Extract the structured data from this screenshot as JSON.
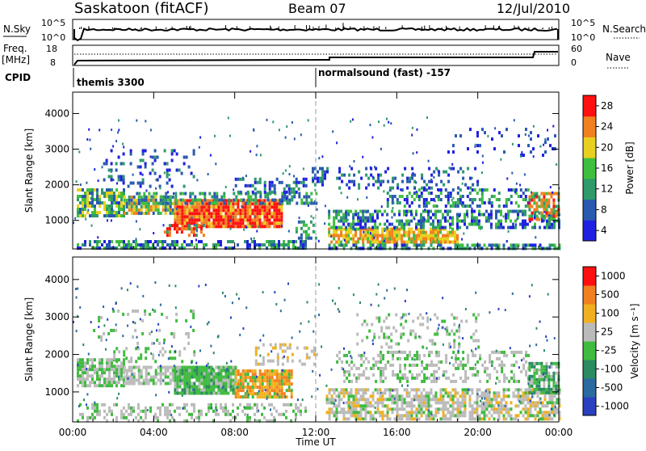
{
  "header": {
    "station": "Saskatoon (fitACF)",
    "beam": "Beam 07",
    "date": "12/Jul/2010"
  },
  "params": {
    "nsky_label": "N.Sky",
    "nsearch_label": "N.Search",
    "freq_label_1": "Freq.",
    "freq_label_2": "[MHz]",
    "nave_label": "Nave",
    "cpid_label": "CPID",
    "nsky_ticks": [
      "10^5",
      "10^0"
    ],
    "nsearch_ticks": [
      "10^5",
      "10^0"
    ],
    "freq_ticks": [
      "18",
      "8"
    ],
    "nave_ticks": [
      "60",
      "0"
    ],
    "cpid_segments": [
      "themis 3300",
      "normalsound (fast) -157"
    ]
  },
  "colors": {
    "power_scale": [
      "#2020e0",
      "#2a5ab0",
      "#2f9a6a",
      "#3fbf3f",
      "#e8d020",
      "#f08020",
      "#ff1010"
    ],
    "velocity_scale": [
      "#2a40c0",
      "#2a6aa0",
      "#2a8a60",
      "#40bb40",
      "#bbbbbb",
      "#f0b020",
      "#f08020",
      "#ff1010"
    ]
  },
  "chart_data": [
    {
      "type": "heatmap",
      "title": "",
      "xlabel": "",
      "ylabel": "Slant Range [km]",
      "ylim": [
        200,
        4600
      ],
      "y_ticks": [
        "1000",
        "2000",
        "3000",
        "4000"
      ],
      "x_ticks": [
        "00:00",
        "04:00",
        "08:00",
        "12:00",
        "16:00",
        "20:00",
        "00:00"
      ],
      "colorbar": {
        "label": "Power [dB]",
        "ticks": [
          "4",
          "8",
          "12",
          "16",
          "20",
          "24",
          "28"
        ],
        "range": [
          0,
          30
        ]
      }
    },
    {
      "type": "heatmap",
      "title": "",
      "xlabel": "Time UT",
      "ylabel": "Slant Range [km]",
      "ylim": [
        200,
        4600
      ],
      "y_ticks": [
        "1000",
        "2000",
        "3000",
        "4000"
      ],
      "x_ticks": [
        "00:00",
        "04:00",
        "08:00",
        "12:00",
        "16:00",
        "20:00",
        "00:00"
      ],
      "colorbar": {
        "label": "Velocity [m s⁻¹]",
        "ticks": [
          "1000",
          "500",
          "100",
          "25",
          "-25",
          "-100",
          "-500",
          "-1000"
        ]
      }
    }
  ]
}
